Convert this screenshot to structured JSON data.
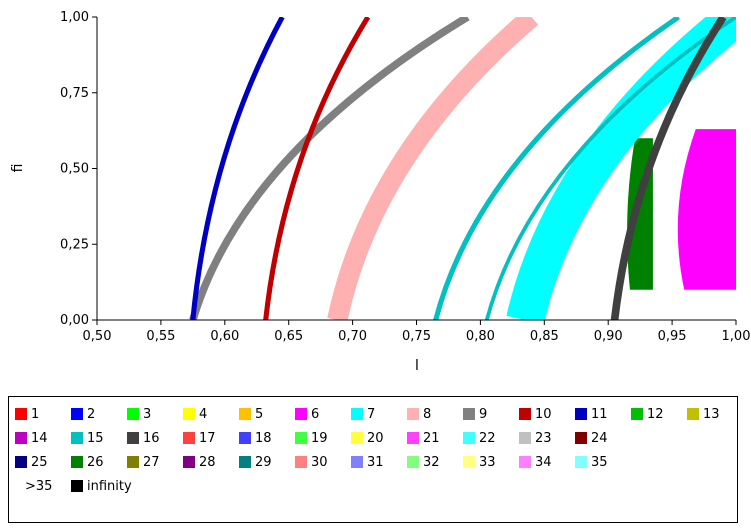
{
  "chart_data": {
    "type": "heatmap",
    "xlabel": "l",
    "ylabel": "fi",
    "xlim": [
      0.5,
      1.0
    ],
    "ylim": [
      0.0,
      1.0
    ],
    "x_ticks": [
      "0,50",
      "0,55",
      "0,60",
      "0,65",
      "0,70",
      "0,75",
      "0,80",
      "0,85",
      "0,90",
      "0,95",
      "1,00"
    ],
    "y_ticks": [
      "0,00",
      "0,25",
      "0,50",
      "0,75",
      "1,00"
    ],
    "grid": false,
    "legend_position": "bottom",
    "bands": [
      {
        "class": "7",
        "x_at_fi0": 0.835,
        "x_at_fi1": 1.0,
        "width": 0.03
      },
      {
        "class": "8",
        "x_at_fi0": 0.688,
        "x_at_fi1": 0.84,
        "width": 0.016
      },
      {
        "class": "9",
        "x_at_fi0": 0.575,
        "x_at_fi1": 0.79,
        "width": 0.006
      },
      {
        "class": "15",
        "x_at_fi0": 0.765,
        "x_at_fi1": 0.955,
        "width": 0.004
      },
      {
        "class": "15",
        "x_at_fi0": 0.805,
        "x_at_fi1": 1.0,
        "width": 0.003
      },
      {
        "class": "10",
        "x_at_fi0": 0.632,
        "x_at_fi1": 0.712,
        "width": 0.004
      },
      {
        "class": "11",
        "x_at_fi0": 0.575,
        "x_at_fi1": 0.645,
        "width": 0.004
      },
      {
        "class": "16",
        "x_at_fi0": 0.905,
        "x_at_fi1": 0.99,
        "width": 0.006
      }
    ],
    "regions": [
      {
        "class": "6",
        "description_x_range": [
          0.955,
          1.0
        ],
        "fi_range": [
          0.1,
          0.63
        ]
      },
      {
        "class": "26",
        "description_x_range": [
          0.915,
          0.935
        ],
        "fi_range": [
          0.1,
          0.6
        ]
      }
    ]
  },
  "legend": {
    "rows": [
      [
        {
          "label": "1",
          "color": "#ff0000"
        },
        {
          "label": "2",
          "color": "#0000ff"
        },
        {
          "label": "3",
          "color": "#00ff00"
        },
        {
          "label": "4",
          "color": "#ffff00"
        },
        {
          "label": "5",
          "color": "#ffc000"
        },
        {
          "label": "6",
          "color": "#ff00ff"
        },
        {
          "label": "7",
          "color": "#00ffff"
        },
        {
          "label": "8",
          "color": "#ffb0b0"
        },
        {
          "label": "9",
          "color": "#808080"
        },
        {
          "label": "10",
          "color": "#c00000"
        },
        {
          "label": "11",
          "color": "#0000c0"
        },
        {
          "label": "12",
          "color": "#00c000"
        },
        {
          "label": "13",
          "color": "#c0c000"
        }
      ],
      [
        {
          "label": "14",
          "color": "#c000c0"
        },
        {
          "label": "15",
          "color": "#00c0c0"
        },
        {
          "label": "16",
          "color": "#404040"
        },
        {
          "label": "17",
          "color": "#ff4040"
        },
        {
          "label": "18",
          "color": "#4040ff"
        },
        {
          "label": "19",
          "color": "#40ff40"
        },
        {
          "label": "20",
          "color": "#ffff40"
        },
        {
          "label": "21",
          "color": "#ff40ff"
        },
        {
          "label": "22",
          "color": "#40ffff"
        },
        {
          "label": "23",
          "color": "#c0c0c0"
        },
        {
          "label": "24",
          "color": "#800000"
        }
      ],
      [
        {
          "label": "25",
          "color": "#000080"
        },
        {
          "label": "26",
          "color": "#008000"
        },
        {
          "label": "27",
          "color": "#808000"
        },
        {
          "label": "28",
          "color": "#800080"
        },
        {
          "label": "29",
          "color": "#008080"
        },
        {
          "label": "30",
          "color": "#ff8080"
        },
        {
          "label": "31",
          "color": "#8080ff"
        },
        {
          "label": "32",
          "color": "#80ff80"
        },
        {
          "label": "33",
          "color": "#ffff80"
        },
        {
          "label": "34",
          "color": "#ff80ff"
        },
        {
          "label": "35",
          "color": "#80ffff"
        }
      ]
    ],
    "gt35_label": ">35",
    "infinity": {
      "label": "infinity",
      "color": "#000000"
    }
  }
}
